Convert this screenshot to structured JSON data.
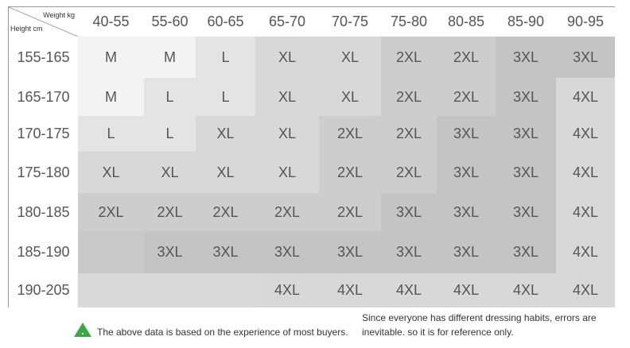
{
  "table": {
    "corner": {
      "weight": "Weight kg",
      "height": "Height cm"
    },
    "columns": [
      "40-55",
      "55-60",
      "60-65",
      "65-70",
      "70-75",
      "75-80",
      "80-85",
      "85-90",
      "90-95"
    ],
    "rows": [
      {
        "label": "155-165",
        "cells": [
          "M",
          "M",
          "L",
          "XL",
          "XL",
          "2XL",
          "2XL",
          "3XL",
          "3XL"
        ]
      },
      {
        "label": "165-170",
        "cells": [
          "M",
          "L",
          "L",
          "XL",
          "XL",
          "2XL",
          "2XL",
          "3XL",
          "4XL"
        ]
      },
      {
        "label": "170-175",
        "cells": [
          "L",
          "L",
          "XL",
          "XL",
          "2XL",
          "2XL",
          "3XL",
          "3XL",
          "4XL"
        ]
      },
      {
        "label": "175-180",
        "cells": [
          "XL",
          "XL",
          "XL",
          "XL",
          "2XL",
          "2XL",
          "3XL",
          "3XL",
          "4XL"
        ]
      },
      {
        "label": "180-185",
        "cells": [
          "2XL",
          "2XL",
          "2XL",
          "2XL",
          "2XL",
          "3XL",
          "3XL",
          "3XL",
          "4XL"
        ]
      },
      {
        "label": "185-190",
        "cells": [
          null,
          "3XL",
          "3XL",
          "3XL",
          "3XL",
          "3XL",
          "3XL",
          "3XL",
          "4XL"
        ]
      },
      {
        "label": "190-205",
        "cells": [
          null,
          null,
          null,
          "4XL",
          "4XL",
          "4XL",
          "4XL",
          "4XL",
          "4XL"
        ]
      }
    ]
  },
  "footer": {
    "note": "The above data is based on the experience of most buyers.",
    "disclaimer": [
      "Since everyone has different dressing habits, errors are",
      "inevitable. so it is for reference only."
    ]
  }
}
